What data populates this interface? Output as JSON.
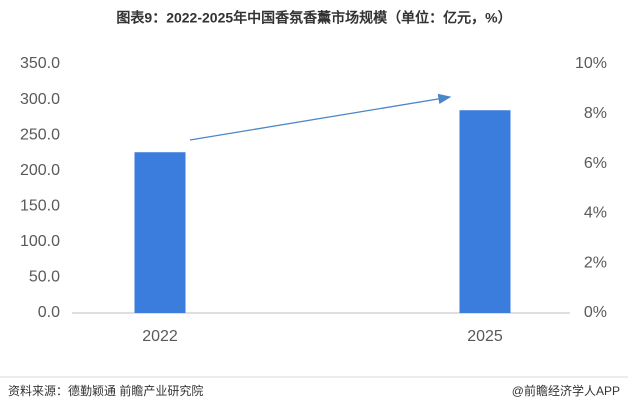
{
  "chart_data": {
    "type": "bar",
    "title": "图表9：2022-2025年中国香氛香薰市场规模（单位：亿元，%）",
    "categories": [
      "2022",
      "2025"
    ],
    "values": [
      226,
      285
    ],
    "color": "#3b7ddd",
    "ylim": [
      0,
      350
    ],
    "yticks": [
      {
        "value": 0,
        "label": "0.0"
      },
      {
        "value": 50,
        "label": "50.0"
      },
      {
        "value": 100,
        "label": "100.0"
      },
      {
        "value": 150,
        "label": "150.0"
      },
      {
        "value": 200,
        "label": "200.0"
      },
      {
        "value": 250,
        "label": "250.0"
      },
      {
        "value": 300,
        "label": "300.0"
      },
      {
        "value": 350,
        "label": "350.0"
      }
    ],
    "y2lim": [
      0,
      10
    ],
    "y2ticks": [
      {
        "value": 0,
        "label": "0%"
      },
      {
        "value": 2,
        "label": "2%"
      },
      {
        "value": 4,
        "label": "4%"
      },
      {
        "value": 6,
        "label": "6%"
      },
      {
        "value": 8,
        "label": "8%"
      },
      {
        "value": 10,
        "label": "10%"
      }
    ],
    "grid": false,
    "source": "资料来源：德勤颖通  前瞻产业研究院",
    "credit": "@前瞻经济学人APP"
  }
}
